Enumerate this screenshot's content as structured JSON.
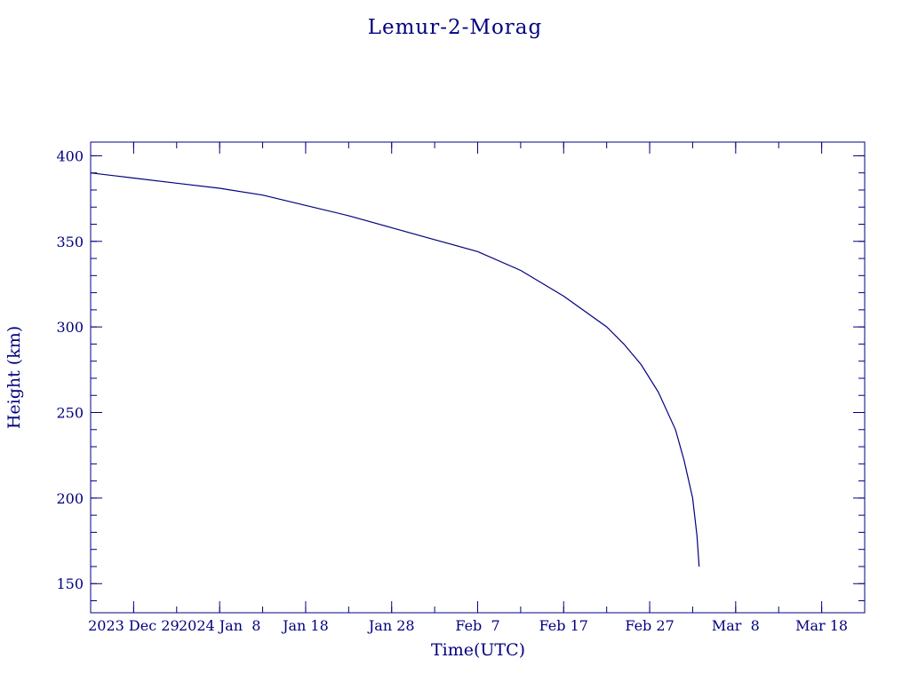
{
  "chart_data": {
    "type": "line",
    "title": "Lemur-2-Morag",
    "xlabel": "Time(UTC)",
    "ylabel": "Height (km)",
    "x_type": "date",
    "xlim": [
      "2023-12-24",
      "2024-03-23"
    ],
    "ylim": [
      133,
      408
    ],
    "y_ticks": [
      150,
      200,
      250,
      300,
      350,
      400
    ],
    "y_minor_step": 10,
    "x_minor_step_days": 5,
    "x_ticks": [
      {
        "date": "2023-12-29",
        "label": "2023 Dec 29"
      },
      {
        "date": "2024-01-08",
        "label": "2024 Jan  8"
      },
      {
        "date": "2024-01-18",
        "label": "Jan 18"
      },
      {
        "date": "2024-01-28",
        "label": "Jan 28"
      },
      {
        "date": "2024-02-07",
        "label": "Feb  7"
      },
      {
        "date": "2024-02-17",
        "label": "Feb 17"
      },
      {
        "date": "2024-02-27",
        "label": "Feb 27"
      },
      {
        "date": "2024-03-08",
        "label": "Mar  8"
      },
      {
        "date": "2024-03-18",
        "label": "Mar 18"
      }
    ],
    "grid": false,
    "color": "#00007f",
    "series": [
      {
        "points": [
          [
            "2023-12-24",
            390
          ],
          [
            "2023-12-29",
            387
          ],
          [
            "2024-01-03",
            384
          ],
          [
            "2024-01-08",
            381
          ],
          [
            "2024-01-13",
            377
          ],
          [
            "2024-01-18",
            371
          ],
          [
            "2024-01-23",
            365
          ],
          [
            "2024-01-28",
            358
          ],
          [
            "2024-02-02",
            351
          ],
          [
            "2024-02-07",
            344
          ],
          [
            "2024-02-12",
            333
          ],
          [
            "2024-02-17",
            318
          ],
          [
            "2024-02-22",
            300
          ],
          [
            "2024-02-24",
            290
          ],
          [
            "2024-02-26",
            278
          ],
          [
            "2024-02-28",
            262
          ],
          [
            "2024-03-01",
            240
          ],
          [
            "2024-03-02",
            222
          ],
          [
            "2024-03-03",
            200
          ],
          [
            "2024-03-03T12:00",
            178
          ],
          [
            "2024-03-03T18:00",
            160
          ]
        ]
      }
    ]
  }
}
